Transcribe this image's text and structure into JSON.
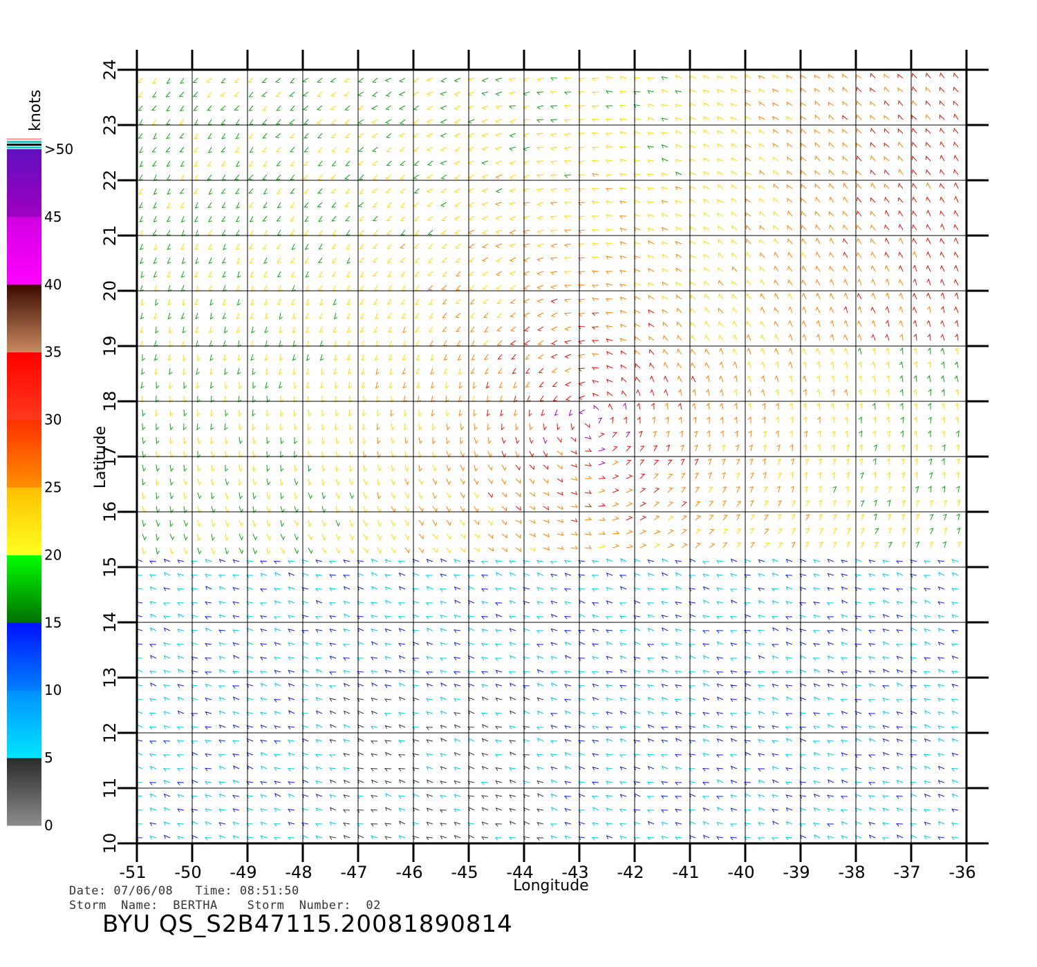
{
  "map": {
    "lon_range": [
      -51,
      -36
    ],
    "lat_range": [
      10,
      24
    ],
    "lon_ticks": [
      "-51",
      "-50",
      "-49",
      "-48",
      "-47",
      "-46",
      "-45",
      "-44",
      "-43",
      "-42",
      "-41",
      "-40",
      "-39",
      "-38",
      "-37",
      "-36"
    ],
    "lat_ticks": [
      "10",
      "11",
      "12",
      "13",
      "14",
      "15",
      "16",
      "17",
      "18",
      "19",
      "20",
      "21",
      "22",
      "23",
      "24"
    ],
    "xlabel": "Longitude",
    "ylabel": "Latitude",
    "grid": true,
    "field": "wind vectors",
    "storm_center_approx": {
      "lon": -42.8,
      "lat": 17.7
    }
  },
  "colorbar": {
    "unit_label": "knots",
    "labels": [
      "0",
      "5",
      "10",
      "15",
      "20",
      "25",
      "30",
      "35",
      "40",
      "45",
      ">50"
    ],
    "bands": [
      {
        "from": 0,
        "to": 5,
        "colors": [
          "#8c8c8c",
          "#2a2a2a"
        ]
      },
      {
        "from": 5,
        "to": 10,
        "colors": [
          "#00e5ff",
          "#0090ff"
        ]
      },
      {
        "from": 10,
        "to": 15,
        "colors": [
          "#0080ff",
          "#0010ff"
        ]
      },
      {
        "from": 15,
        "to": 20,
        "colors": [
          "#007000",
          "#00ff00"
        ]
      },
      {
        "from": 20,
        "to": 25,
        "colors": [
          "#ffff20",
          "#ffc000"
        ]
      },
      {
        "from": 25,
        "to": 30,
        "colors": [
          "#ff9000",
          "#ff3000"
        ]
      },
      {
        "from": 30,
        "to": 35,
        "colors": [
          "#ff3a1a",
          "#ff0000"
        ]
      },
      {
        "from": 35,
        "to": 40,
        "colors": [
          "#c88a60",
          "#3a0a00"
        ]
      },
      {
        "from": 40,
        "to": 45,
        "colors": [
          "#ff00ff",
          "#d000e0"
        ]
      },
      {
        "from": 45,
        "to": 50,
        "colors": [
          "#a000c0",
          "#6010c0"
        ]
      }
    ],
    "top_stripes": [
      "#f4b0b0",
      "#30c0c0",
      "#101010",
      "#30c8c8"
    ]
  },
  "footer": {
    "date_line": "Date: 07/06/08   Time: 08:51:50",
    "storm_line": "Storm  Name:  BERTHA    Storm  Number:  02",
    "product_id": "BYU  QS_S2B47115.20081890814"
  }
}
